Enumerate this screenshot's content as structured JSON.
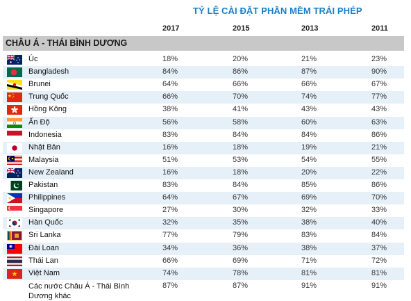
{
  "title": "TỶ LỆ CÀI ĐẶT PHẦN MỀM TRÁI PHÉP",
  "years": [
    "2017",
    "2015",
    "2013",
    "2011"
  ],
  "region": "CHÂU Á - THÁI BÌNH DƯƠNG",
  "rows": [
    {
      "country": "Úc",
      "flag": "australia-flag-icon",
      "values": [
        "18%",
        "20%",
        "21%",
        "23%"
      ]
    },
    {
      "country": "Bangladesh",
      "flag": "bangladesh-flag-icon",
      "values": [
        "84%",
        "86%",
        "87%",
        "90%"
      ]
    },
    {
      "country": "Brunei",
      "flag": "brunei-flag-icon",
      "values": [
        "64%",
        "66%",
        "66%",
        "67%"
      ]
    },
    {
      "country": "Trung Quốc",
      "flag": "china-flag-icon",
      "values": [
        "66%",
        "70%",
        "74%",
        "77%"
      ]
    },
    {
      "country": "Hồng Kông",
      "flag": "hong-kong-flag-icon",
      "values": [
        "38%",
        "41%",
        "43%",
        "43%"
      ]
    },
    {
      "country": "Ấn Độ",
      "flag": "india-flag-icon",
      "values": [
        "56%",
        "58%",
        "60%",
        "63%"
      ]
    },
    {
      "country": "Indonesia",
      "flag": "indonesia-flag-icon",
      "values": [
        "83%",
        "84%",
        "84%",
        "86%"
      ]
    },
    {
      "country": "Nhật Bản",
      "flag": "japan-flag-icon",
      "values": [
        "16%",
        "18%",
        "19%",
        "21%"
      ]
    },
    {
      "country": "Malaysia",
      "flag": "malaysia-flag-icon",
      "values": [
        "51%",
        "53%",
        "54%",
        "55%"
      ]
    },
    {
      "country": "New Zealand",
      "flag": "new-zealand-flag-icon",
      "values": [
        "16%",
        "18%",
        "20%",
        "22%"
      ]
    },
    {
      "country": "Pakistan",
      "flag": "pakistan-flag-icon",
      "values": [
        "83%",
        "84%",
        "85%",
        "86%"
      ]
    },
    {
      "country": "Philippines",
      "flag": "philippines-flag-icon",
      "values": [
        "64%",
        "67%",
        "69%",
        "70%"
      ]
    },
    {
      "country": "Singapore",
      "flag": "singapore-flag-icon",
      "values": [
        "27%",
        "30%",
        "32%",
        "33%"
      ]
    },
    {
      "country": "Hàn Quốc",
      "flag": "south-korea-flag-icon",
      "values": [
        "32%",
        "35%",
        "38%",
        "40%"
      ]
    },
    {
      "country": "Sri Lanka",
      "flag": "sri-lanka-flag-icon",
      "values": [
        "77%",
        "79%",
        "83%",
        "84%"
      ]
    },
    {
      "country": "Đài Loan",
      "flag": "taiwan-flag-icon",
      "values": [
        "34%",
        "36%",
        "38%",
        "37%"
      ]
    },
    {
      "country": "Thái Lan",
      "flag": "thailand-flag-icon",
      "values": [
        "66%",
        "69%",
        "71%",
        "72%"
      ]
    },
    {
      "country": "Việt Nam",
      "flag": "vietnam-flag-icon",
      "values": [
        "74%",
        "78%",
        "81%",
        "81%"
      ]
    },
    {
      "country": "Các nước Châu Á - Thái Bình Dương khác",
      "flag": "",
      "values": [
        "87%",
        "87%",
        "91%",
        "91%"
      ]
    }
  ],
  "colors": {
    "title": "#1a7fc4",
    "region_band": "#c8c8c8",
    "alt_row": "#e6f0f8"
  }
}
